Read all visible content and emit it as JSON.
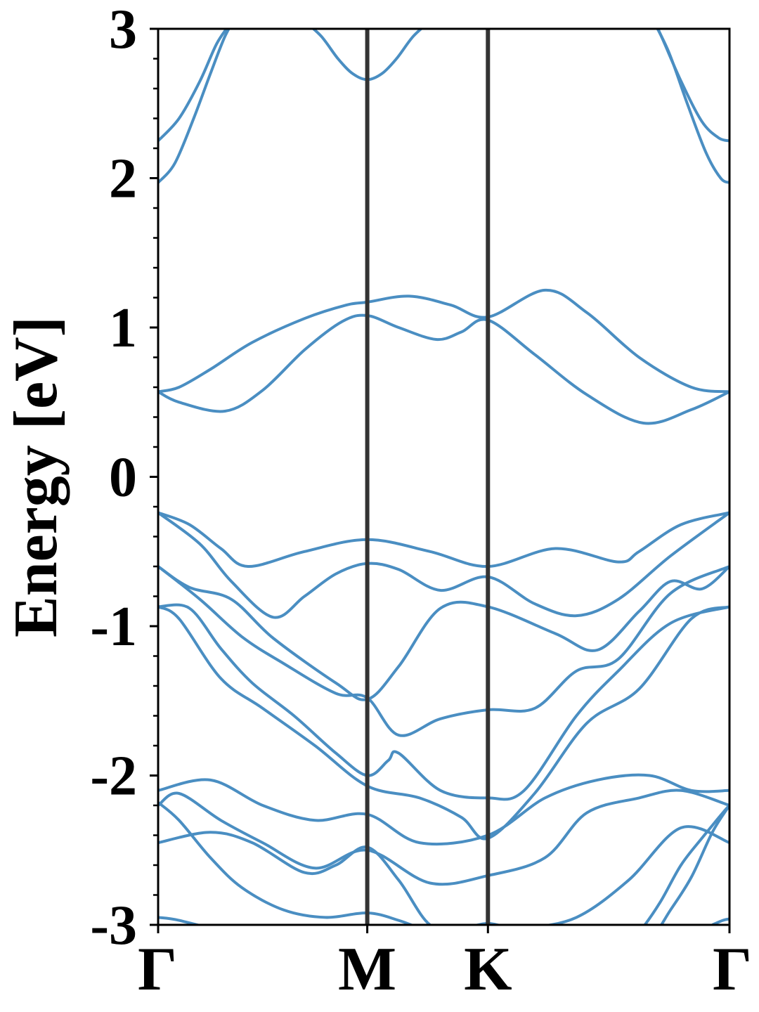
{
  "chart_data": {
    "type": "line",
    "title": "",
    "xlabel": "",
    "ylabel": "Energy [eV]",
    "ylim": [
      -3,
      3
    ],
    "yticks": [
      -3,
      -2,
      -1,
      0,
      1,
      2,
      3
    ],
    "ytick_labels": [
      "-3",
      "-2",
      "-1",
      "0",
      "1",
      "2",
      "3"
    ],
    "xlim": [
      0,
      2.732
    ],
    "high_symbol_points": [
      {
        "label": "Γ",
        "k": 0
      },
      {
        "label": "M",
        "k": 1.0
      },
      {
        "label": "K",
        "k": 1.577
      },
      {
        "label": "Γ",
        "k": 2.732
      }
    ],
    "band_color": "#4a8ec2",
    "divider_color": "#333333",
    "grid": false,
    "series": [
      {
        "x": [
          0,
          0.1,
          0.2,
          0.28,
          0.35,
          0.4
        ],
        "y": [
          2.25,
          2.4,
          2.65,
          2.9,
          3.05,
          3.2
        ]
      },
      {
        "x": [
          0,
          0.08,
          0.17,
          0.25,
          0.32,
          0.38
        ],
        "y": [
          1.97,
          2.1,
          2.4,
          2.7,
          2.95,
          3.1
        ]
      },
      {
        "x": [
          0.7,
          0.78,
          0.86,
          0.93,
          1.0,
          1.07,
          1.14,
          1.22,
          1.3
        ],
        "y": [
          3.05,
          2.95,
          2.8,
          2.7,
          2.66,
          2.7,
          2.8,
          2.95,
          3.05
        ]
      },
      {
        "x": [
          2.32,
          2.4,
          2.5,
          2.6,
          2.68,
          2.732
        ],
        "y": [
          3.2,
          2.97,
          2.65,
          2.38,
          2.27,
          2.25
        ]
      },
      {
        "x": [
          2.35,
          2.44,
          2.53,
          2.62,
          2.69,
          2.732
        ],
        "y": [
          3.1,
          2.85,
          2.5,
          2.17,
          2.0,
          1.97
        ]
      },
      {
        "x": [
          0,
          0.1,
          0.25,
          0.45,
          0.7,
          0.9,
          1.0,
          1.2,
          1.4,
          1.577,
          1.85,
          2.05,
          2.3,
          2.55,
          2.732
        ],
        "y": [
          0.57,
          0.6,
          0.72,
          0.9,
          1.06,
          1.15,
          1.17,
          1.21,
          1.15,
          1.07,
          1.25,
          1.1,
          0.8,
          0.6,
          0.57
        ]
      },
      {
        "x": [
          0,
          0.1,
          0.32,
          0.5,
          0.7,
          0.88,
          1.0,
          1.15,
          1.33,
          1.45,
          1.577,
          1.8,
          2.05,
          2.32,
          2.55,
          2.732
        ],
        "y": [
          0.57,
          0.5,
          0.44,
          0.58,
          0.85,
          1.04,
          1.08,
          1.0,
          0.92,
          0.97,
          1.05,
          0.82,
          0.55,
          0.36,
          0.45,
          0.57
        ]
      },
      {
        "x": [
          0,
          0.15,
          0.3,
          0.43,
          0.7,
          1.0,
          1.3,
          1.577,
          1.9,
          2.2,
          2.3,
          2.5,
          2.732
        ],
        "y": [
          -0.24,
          -0.32,
          -0.48,
          -0.6,
          -0.5,
          -0.42,
          -0.5,
          -0.6,
          -0.48,
          -0.57,
          -0.5,
          -0.32,
          -0.24
        ]
      },
      {
        "x": [
          0,
          0.2,
          0.35,
          0.55,
          0.7,
          0.85,
          1.0,
          1.15,
          1.35,
          1.577,
          1.8,
          2.0,
          2.2,
          2.45,
          2.732
        ],
        "y": [
          -0.24,
          -0.45,
          -0.7,
          -0.94,
          -0.8,
          -0.65,
          -0.58,
          -0.62,
          -0.76,
          -0.67,
          -0.85,
          -0.93,
          -0.82,
          -0.53,
          -0.24
        ]
      },
      {
        "x": [
          0,
          0.15,
          0.35,
          0.55,
          0.85,
          1.0,
          1.15,
          1.35,
          1.577,
          1.9,
          2.1,
          2.3,
          2.45,
          2.6,
          2.732
        ],
        "y": [
          -0.6,
          -0.74,
          -0.82,
          -1.08,
          -1.38,
          -1.49,
          -1.27,
          -0.88,
          -0.87,
          -1.05,
          -1.16,
          -0.9,
          -0.7,
          -0.75,
          -0.6
        ]
      },
      {
        "x": [
          0,
          0.2,
          0.4,
          0.6,
          0.85,
          1.0,
          1.15,
          1.35,
          1.577,
          1.8,
          2.0,
          2.2,
          2.45,
          2.732
        ],
        "y": [
          -0.6,
          -0.82,
          -1.07,
          -1.25,
          -1.45,
          -1.48,
          -1.73,
          -1.62,
          -1.56,
          -1.55,
          -1.3,
          -1.22,
          -0.78,
          -0.6
        ]
      },
      {
        "x": [
          0,
          0.15,
          0.3,
          0.45,
          0.65,
          0.85,
          1.0,
          1.1,
          1.15,
          1.35,
          1.577,
          1.75,
          2.0,
          2.2,
          2.45,
          2.732
        ],
        "y": [
          -0.87,
          -0.88,
          -1.15,
          -1.38,
          -1.6,
          -1.85,
          -2.0,
          -1.9,
          -1.85,
          -2.1,
          -2.15,
          -2.1,
          -1.6,
          -1.3,
          -0.98,
          -0.87
        ]
      },
      {
        "x": [
          0,
          0.1,
          0.3,
          0.5,
          0.75,
          1.0,
          1.25,
          1.45,
          1.577,
          1.8,
          2.05,
          2.3,
          2.55,
          2.732
        ],
        "y": [
          -0.87,
          -0.95,
          -1.35,
          -1.55,
          -1.8,
          -2.07,
          -2.15,
          -2.28,
          -2.42,
          -2.12,
          -1.65,
          -1.42,
          -0.95,
          -0.87
        ]
      },
      {
        "x": [
          0,
          0.25,
          0.5,
          0.75,
          1.0,
          1.25,
          1.577,
          1.85,
          2.1,
          2.35,
          2.55,
          2.732
        ],
        "y": [
          -2.1,
          -2.03,
          -2.2,
          -2.3,
          -2.26,
          -2.45,
          -2.4,
          -2.15,
          -2.03,
          -2.0,
          -2.1,
          -2.1
        ]
      },
      {
        "x": [
          0,
          0.1,
          0.3,
          0.5,
          0.75,
          1.0,
          1.3,
          1.577,
          1.85,
          2.05,
          2.3,
          2.5,
          2.732
        ],
        "y": [
          -2.2,
          -2.12,
          -2.3,
          -2.45,
          -2.62,
          -2.5,
          -2.72,
          -2.67,
          -2.55,
          -2.25,
          -2.15,
          -2.1,
          -2.2
        ]
      },
      {
        "x": [
          0,
          0.25,
          0.45,
          0.7,
          0.85,
          1.0,
          1.15,
          1.3,
          1.45,
          1.577,
          1.75,
          2.0,
          2.25,
          2.5,
          2.732
        ],
        "y": [
          -2.45,
          -2.38,
          -2.45,
          -2.65,
          -2.6,
          -2.48,
          -2.7,
          -3.0,
          -3.02,
          -3.0,
          -3.02,
          -2.95,
          -2.7,
          -2.35,
          -2.45
        ]
      },
      {
        "x": [
          0,
          0.1,
          0.25,
          0.4,
          0.6,
          0.8,
          1.0,
          1.15,
          1.3
        ],
        "y": [
          -2.18,
          -2.3,
          -2.55,
          -2.75,
          -2.9,
          -2.95,
          -2.92,
          -2.97,
          -3.05
        ]
      },
      {
        "x": [
          0,
          0.1,
          0.3,
          0.5
        ],
        "y": [
          -2.95,
          -2.97,
          -3.05,
          -3.2
        ]
      },
      {
        "x": [
          1.5,
          1.577,
          1.65
        ],
        "y": [
          -3.01,
          -2.99,
          -3.01
        ]
      },
      {
        "x": [
          2.2,
          2.3,
          2.4,
          2.5,
          2.6,
          2.7,
          2.732
        ],
        "y": [
          -3.2,
          -3.05,
          -2.85,
          -2.6,
          -2.42,
          -2.25,
          -2.2
        ]
      },
      {
        "x": [
          2.2,
          2.35,
          2.45,
          2.55,
          2.65,
          2.732
        ],
        "y": [
          -3.2,
          -3.1,
          -2.9,
          -2.68,
          -2.38,
          -2.2
        ]
      },
      {
        "x": [
          2.65,
          2.7,
          2.732
        ],
        "y": [
          -3.0,
          -2.97,
          -2.96
        ]
      }
    ]
  }
}
